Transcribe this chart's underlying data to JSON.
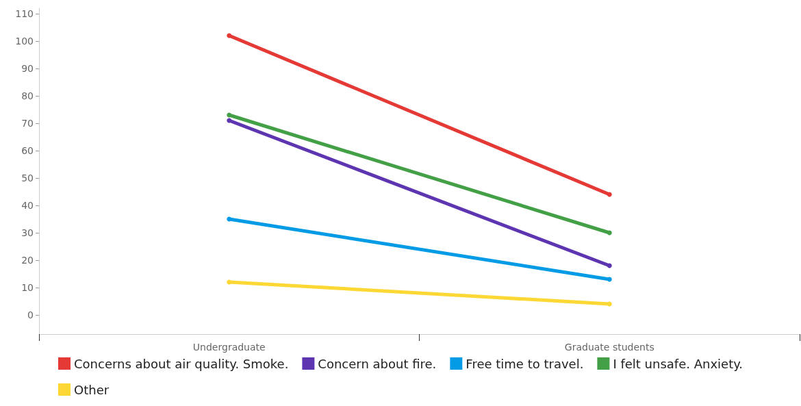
{
  "chart_data": {
    "type": "line",
    "categories": [
      "Undergraduate",
      "Graduate students"
    ],
    "series": [
      {
        "name": "Concerns about air quality. Smoke.",
        "color": "#e53935",
        "values": [
          102,
          44
        ]
      },
      {
        "name": "Concern about fire.",
        "color": "#5e35b1",
        "values": [
          71,
          18
        ]
      },
      {
        "name": "Free time to travel.",
        "color": "#039be5",
        "values": [
          35,
          13
        ]
      },
      {
        "name": "I felt unsafe. Anxiety.",
        "color": "#43a047",
        "values": [
          73,
          30
        ]
      },
      {
        "name": "Other",
        "color": "#fdd835",
        "values": [
          12,
          4
        ]
      }
    ],
    "ylim": [
      -7,
      112
    ],
    "yticks": [
      0,
      10,
      20,
      30,
      40,
      50,
      60,
      70,
      80,
      90,
      100,
      110
    ],
    "grid": false,
    "legend": "bottom",
    "marker": "circle",
    "line_style": "solid"
  }
}
